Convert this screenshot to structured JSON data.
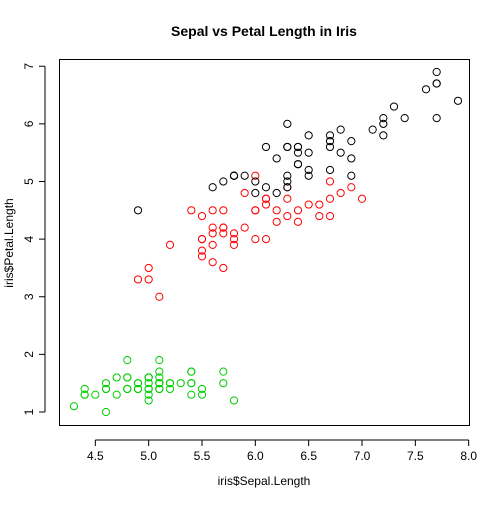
{
  "chart_data": {
    "type": "scatter",
    "title": "Sepal vs Petal Length in Iris",
    "xlabel": "iris$Sepal.Length",
    "ylabel": "iris$Petal.Length",
    "xlim": [
      4.3,
      7.9
    ],
    "ylim": [
      1.0,
      6.9
    ],
    "x_ticks": [
      4.5,
      5.0,
      5.5,
      6.0,
      6.5,
      7.0,
      7.5,
      8.0
    ],
    "x_tick_labels": [
      "4.5",
      "5.0",
      "5.5",
      "6.0",
      "6.5",
      "7.0",
      "7.5",
      "8.0"
    ],
    "y_ticks": [
      1,
      2,
      3,
      4,
      5,
      6,
      7
    ],
    "y_tick_labels": [
      "1",
      "2",
      "3",
      "4",
      "5",
      "6",
      "7"
    ],
    "grid": false,
    "legend": "none",
    "marker": "open-circle",
    "series": [
      {
        "color": "#00CD00",
        "points": [
          [
            5.1,
            1.4
          ],
          [
            4.9,
            1.4
          ],
          [
            4.7,
            1.3
          ],
          [
            4.6,
            1.5
          ],
          [
            5.0,
            1.4
          ],
          [
            5.4,
            1.7
          ],
          [
            4.6,
            1.4
          ],
          [
            5.0,
            1.5
          ],
          [
            4.4,
            1.4
          ],
          [
            4.9,
            1.5
          ],
          [
            5.4,
            1.5
          ],
          [
            4.8,
            1.6
          ],
          [
            4.8,
            1.4
          ],
          [
            4.3,
            1.1
          ],
          [
            5.8,
            1.2
          ],
          [
            5.7,
            1.5
          ],
          [
            5.4,
            1.3
          ],
          [
            5.1,
            1.4
          ],
          [
            5.7,
            1.7
          ],
          [
            5.1,
            1.5
          ],
          [
            5.4,
            1.7
          ],
          [
            5.1,
            1.5
          ],
          [
            4.6,
            1.0
          ],
          [
            5.1,
            1.7
          ],
          [
            4.8,
            1.9
          ],
          [
            5.0,
            1.6
          ],
          [
            5.0,
            1.6
          ],
          [
            5.2,
            1.5
          ],
          [
            5.2,
            1.4
          ],
          [
            4.7,
            1.6
          ],
          [
            4.8,
            1.6
          ],
          [
            5.4,
            1.5
          ],
          [
            5.2,
            1.5
          ],
          [
            5.5,
            1.4
          ],
          [
            4.9,
            1.5
          ],
          [
            5.0,
            1.2
          ],
          [
            5.5,
            1.3
          ],
          [
            4.9,
            1.4
          ],
          [
            4.4,
            1.3
          ],
          [
            5.1,
            1.5
          ],
          [
            5.0,
            1.3
          ],
          [
            4.5,
            1.3
          ],
          [
            4.4,
            1.3
          ],
          [
            5.0,
            1.6
          ],
          [
            5.1,
            1.9
          ],
          [
            4.8,
            1.4
          ],
          [
            5.1,
            1.6
          ],
          [
            4.6,
            1.4
          ],
          [
            5.3,
            1.5
          ],
          [
            5.0,
            1.4
          ]
        ]
      },
      {
        "color": "#FF0000",
        "points": [
          [
            7.0,
            4.7
          ],
          [
            6.4,
            4.5
          ],
          [
            6.9,
            4.9
          ],
          [
            5.5,
            4.0
          ],
          [
            6.5,
            4.6
          ],
          [
            5.7,
            4.5
          ],
          [
            6.3,
            4.7
          ],
          [
            4.9,
            3.3
          ],
          [
            6.6,
            4.6
          ],
          [
            5.2,
            3.9
          ],
          [
            5.0,
            3.5
          ],
          [
            5.9,
            4.2
          ],
          [
            6.0,
            4.0
          ],
          [
            6.1,
            4.7
          ],
          [
            5.6,
            3.6
          ],
          [
            6.7,
            4.4
          ],
          [
            5.6,
            4.5
          ],
          [
            5.8,
            4.1
          ],
          [
            6.2,
            4.5
          ],
          [
            5.6,
            3.9
          ],
          [
            5.9,
            4.8
          ],
          [
            6.1,
            4.0
          ],
          [
            6.3,
            4.9
          ],
          [
            6.1,
            4.7
          ],
          [
            6.4,
            4.3
          ],
          [
            6.6,
            4.4
          ],
          [
            6.8,
            4.8
          ],
          [
            6.7,
            5.0
          ],
          [
            6.0,
            4.5
          ],
          [
            5.7,
            3.5
          ],
          [
            5.5,
            3.8
          ],
          [
            5.5,
            3.7
          ],
          [
            5.8,
            3.9
          ],
          [
            6.0,
            5.1
          ],
          [
            5.4,
            4.5
          ],
          [
            6.0,
            4.5
          ],
          [
            6.7,
            4.7
          ],
          [
            6.3,
            4.4
          ],
          [
            5.6,
            4.1
          ],
          [
            5.5,
            4.0
          ],
          [
            5.5,
            4.4
          ],
          [
            6.1,
            4.6
          ],
          [
            5.8,
            4.0
          ],
          [
            5.0,
            3.3
          ],
          [
            5.6,
            4.2
          ],
          [
            5.7,
            4.2
          ],
          [
            5.7,
            4.2
          ],
          [
            6.2,
            4.3
          ],
          [
            5.1,
            3.0
          ],
          [
            5.7,
            4.1
          ]
        ]
      },
      {
        "color": "#000000",
        "points": [
          [
            6.3,
            6.0
          ],
          [
            5.8,
            5.1
          ],
          [
            7.1,
            5.9
          ],
          [
            6.3,
            5.6
          ],
          [
            6.5,
            5.8
          ],
          [
            7.6,
            6.6
          ],
          [
            4.9,
            4.5
          ],
          [
            7.3,
            6.3
          ],
          [
            6.7,
            5.8
          ],
          [
            7.2,
            6.1
          ],
          [
            6.5,
            5.1
          ],
          [
            6.4,
            5.3
          ],
          [
            6.8,
            5.5
          ],
          [
            5.7,
            5.0
          ],
          [
            5.8,
            5.1
          ],
          [
            6.4,
            5.3
          ],
          [
            6.5,
            5.5
          ],
          [
            7.7,
            6.7
          ],
          [
            7.7,
            6.9
          ],
          [
            6.0,
            5.0
          ],
          [
            6.9,
            5.7
          ],
          [
            5.6,
            4.9
          ],
          [
            7.7,
            6.7
          ],
          [
            6.3,
            4.9
          ],
          [
            6.7,
            5.7
          ],
          [
            7.2,
            6.0
          ],
          [
            6.2,
            4.8
          ],
          [
            6.1,
            4.9
          ],
          [
            6.4,
            5.6
          ],
          [
            7.2,
            5.8
          ],
          [
            7.4,
            6.1
          ],
          [
            7.9,
            6.4
          ],
          [
            6.4,
            5.6
          ],
          [
            6.3,
            5.1
          ],
          [
            6.1,
            5.6
          ],
          [
            7.7,
            6.1
          ],
          [
            6.3,
            5.6
          ],
          [
            6.4,
            5.5
          ],
          [
            6.0,
            4.8
          ],
          [
            6.9,
            5.4
          ],
          [
            6.7,
            5.6
          ],
          [
            6.9,
            5.1
          ],
          [
            5.8,
            5.1
          ],
          [
            6.8,
            5.9
          ],
          [
            6.7,
            5.7
          ],
          [
            6.7,
            5.2
          ],
          [
            6.3,
            5.0
          ],
          [
            6.5,
            5.2
          ],
          [
            6.2,
            5.4
          ],
          [
            5.9,
            5.1
          ]
        ]
      }
    ]
  }
}
